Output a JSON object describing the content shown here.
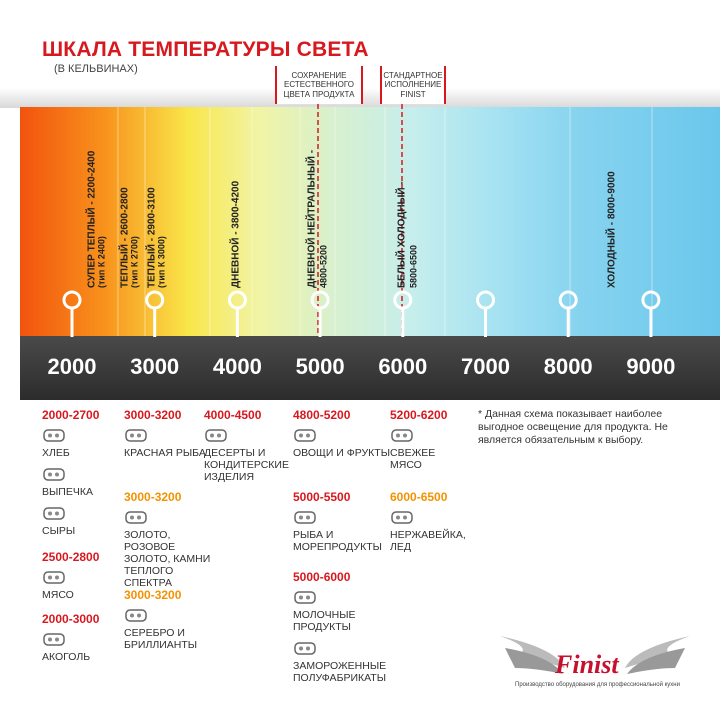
{
  "header": {
    "title": "ШКАЛА ТЕМПЕРАТУРЫ СВЕТА",
    "subtitle": "(В КЕЛЬВИНАХ)"
  },
  "markers": [
    {
      "lines": [
        "СОХРАНЕНИЕ",
        "ЕСТЕСТВЕННОГО",
        "ЦВЕТА ПРОДУКТА"
      ]
    },
    {
      "lines": [
        "СТАНДАРТНОЕ",
        "ИСПОЛНЕНИЕ",
        "FINIST"
      ]
    }
  ],
  "bands": [
    {
      "lines": [
        "СУПЕР ТЕПЛЫЙ - 2200-2400",
        "(тип К 2400)"
      ]
    },
    {
      "lines": [
        "ТЕПЛЫЙ - 2600-2800",
        "(тип К 2700)"
      ]
    },
    {
      "lines": [
        "ТЕПЛЫЙ - 2900-3100",
        "(тип К 3000)"
      ]
    },
    {
      "lines": [
        "ДНЕВНОЙ - 3800-4200"
      ]
    },
    {
      "lines": [
        "ДНЕВНОЙ НЕЙТРАЛЬНЫЙ -",
        "4800-5200"
      ]
    },
    {
      "lines": [
        "БЕЛЫЙ ХОЛОДНЫЙ -",
        "5800-6500"
      ]
    },
    {
      "lines": [
        "ХОЛОДНЫЙ - 8000-9000"
      ]
    }
  ],
  "scale": [
    2000,
    3000,
    4000,
    5000,
    6000,
    7000,
    8000,
    9000
  ],
  "columns": [
    {
      "groups": [
        {
          "range": "2000-2700",
          "color": "#d7191f",
          "items": [
            "ХЛЕБ",
            "ВЫПЕЧКА",
            "СЫРЫ"
          ]
        },
        {
          "range": "2500-2800",
          "color": "#d7191f",
          "items": [
            "МЯСО"
          ]
        },
        {
          "range": "2000-3000",
          "color": "#d7191f",
          "items": [
            "АКОГОЛЬ"
          ]
        }
      ]
    },
    {
      "groups": [
        {
          "range": "3000-3200",
          "color": "#d7191f",
          "items": [
            "КРАСНАЯ РЫБА"
          ]
        },
        {
          "range": "3000-3200",
          "color": "#f39200",
          "items": [
            "ЗОЛОТО, РОЗОВОЕ ЗОЛОТО, КАМНИ ТЕПЛОГО СПЕКТРА"
          ]
        },
        {
          "range": "3000-3200",
          "color": "#f39200",
          "items": [
            "СЕРЕБРО И БРИЛЛИАНТЫ"
          ]
        }
      ]
    },
    {
      "groups": [
        {
          "range": "4000-4500",
          "color": "#d7191f",
          "items": [
            "ДЕСЕРТЫ И КОНДИТЕРСКИЕ ИЗДЕЛИЯ"
          ]
        }
      ]
    },
    {
      "groups": [
        {
          "range": "4800-5200",
          "color": "#d7191f",
          "items": [
            "ОВОЩИ И ФРУКТЫ"
          ]
        },
        {
          "range": "5000-5500",
          "color": "#d7191f",
          "items": [
            "РЫБА И МОРЕПРОДУКТЫ"
          ]
        },
        {
          "range": "5000-6000",
          "color": "#d7191f",
          "items": [
            "МОЛОЧНЫЕ ПРОДУКТЫ",
            "ЗАМОРОЖЕННЫЕ ПОЛУФАБРИКАТЫ"
          ]
        }
      ]
    },
    {
      "groups": [
        {
          "range": "5200-6200",
          "color": "#d7191f",
          "items": [
            "СВЕЖЕЕ МЯСО"
          ]
        },
        {
          "range": "6000-6500",
          "color": "#f39200",
          "items": [
            "НЕРЖАВЕЙКА, ЛЕД"
          ]
        }
      ]
    }
  ],
  "note": "* Данная схема показывает наиболее выгодное освещение для продукта. Не является обязательным к выбору.",
  "logo": {
    "brand": "Finist",
    "tagline": "Производство оборудования для профессиональной кухни"
  }
}
